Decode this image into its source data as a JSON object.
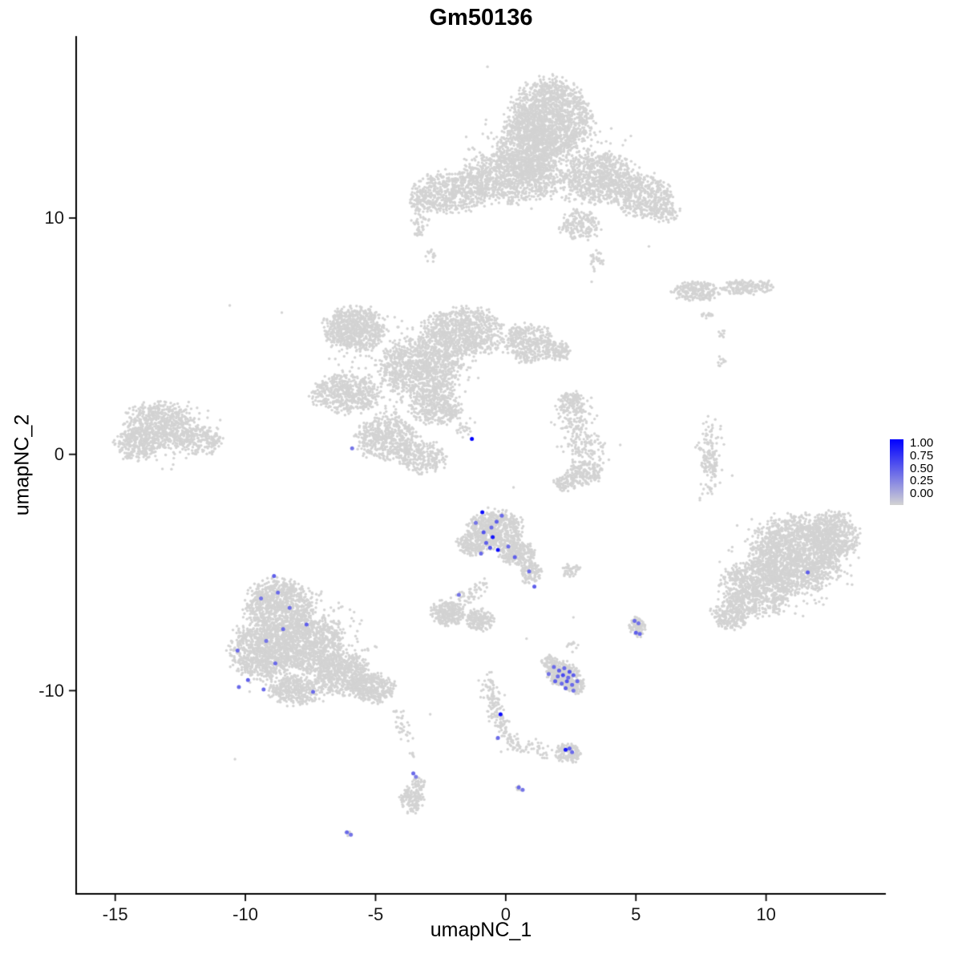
{
  "chart_data": {
    "type": "scatter",
    "title": "Gm50136",
    "xlabel": "umapNC_1",
    "ylabel": "umapNC_2",
    "xlim": [
      -16.5,
      14.6
    ],
    "ylim": [
      -18.6,
      17.7
    ],
    "x_ticks": [
      -15,
      -10,
      -5,
      0,
      5,
      10
    ],
    "y_ticks": [
      10,
      0,
      -10
    ],
    "grid": false,
    "legend_position": "right",
    "legend_labels": [
      "1.00",
      "0.75",
      "0.50",
      "0.25",
      "0.00"
    ],
    "point_color_low": "#D3D3D3",
    "point_color_high": "#0000FF",
    "n_cells_approx": 23000,
    "expression_range": [
      0,
      1
    ],
    "background_clusters": [
      {
        "x": 1.7,
        "y": 14.2,
        "rx": 1.55,
        "ry": 1.65,
        "n": 1500
      },
      {
        "x": 0.9,
        "y": 12.9,
        "rx": 1.3,
        "ry": 1.2,
        "n": 650
      },
      {
        "x": 0.2,
        "y": 11.7,
        "rx": 1.9,
        "ry": 1.1,
        "n": 900
      },
      {
        "x": -2.1,
        "y": 11.1,
        "rx": 1.4,
        "ry": 0.85,
        "n": 520
      },
      {
        "x": -3.2,
        "y": 10.7,
        "rx": 0.6,
        "ry": 0.5,
        "n": 90
      },
      {
        "x": 3.6,
        "y": 11.7,
        "rx": 1.5,
        "ry": 1.05,
        "n": 750
      },
      {
        "x": 5.3,
        "y": 10.9,
        "rx": 1.05,
        "ry": 0.95,
        "n": 420
      },
      {
        "x": 6.1,
        "y": 10.3,
        "rx": 0.55,
        "ry": 0.5,
        "n": 90
      },
      {
        "x": 2.8,
        "y": 9.7,
        "rx": 0.8,
        "ry": 0.65,
        "n": 170
      },
      {
        "x": 1.5,
        "y": 12.6,
        "rx": 3.1,
        "ry": 2.3,
        "n": 260
      },
      {
        "x": -3.3,
        "y": 9.8,
        "rx": 0.35,
        "ry": 0.6,
        "n": 40
      },
      {
        "x": -2.9,
        "y": 8.4,
        "rx": 0.25,
        "ry": 0.3,
        "n": 14
      },
      {
        "x": 3.5,
        "y": 8.2,
        "rx": 0.3,
        "ry": 0.45,
        "n": 30
      },
      {
        "x": -5.8,
        "y": 5.3,
        "rx": 1.15,
        "ry": 0.95,
        "n": 700
      },
      {
        "x": -1.6,
        "y": 5.2,
        "rx": 1.5,
        "ry": 1.0,
        "n": 800
      },
      {
        "x": 0.9,
        "y": 4.7,
        "rx": 1.0,
        "ry": 0.8,
        "n": 380
      },
      {
        "x": 2.0,
        "y": 4.4,
        "rx": 0.5,
        "ry": 0.45,
        "n": 110
      },
      {
        "x": -3.3,
        "y": 3.7,
        "rx": 1.6,
        "ry": 1.25,
        "n": 950
      },
      {
        "x": -6.1,
        "y": 2.6,
        "rx": 1.3,
        "ry": 0.85,
        "n": 520
      },
      {
        "x": -2.7,
        "y": 2.0,
        "rx": 0.95,
        "ry": 0.75,
        "n": 320
      },
      {
        "x": -3.6,
        "y": 3.8,
        "rx": 2.9,
        "ry": 2.1,
        "n": 190
      },
      {
        "x": -13.3,
        "y": 1.2,
        "rx": 1.35,
        "ry": 1.0,
        "n": 620
      },
      {
        "x": -11.7,
        "y": 0.6,
        "rx": 0.85,
        "ry": 0.6,
        "n": 210
      },
      {
        "x": -14.2,
        "y": 0.4,
        "rx": 0.8,
        "ry": 0.65,
        "n": 210
      },
      {
        "x": -13.0,
        "y": 0.9,
        "rx": 1.9,
        "ry": 1.5,
        "n": 110
      },
      {
        "x": -4.6,
        "y": 0.7,
        "rx": 1.25,
        "ry": 0.95,
        "n": 520
      },
      {
        "x": -3.2,
        "y": -0.1,
        "rx": 0.95,
        "ry": 0.7,
        "n": 240
      },
      {
        "x": 2.5,
        "y": 2.2,
        "rx": 0.55,
        "ry": 0.45,
        "n": 110
      },
      {
        "x": 3.0,
        "y": -0.8,
        "rx": 0.7,
        "ry": 0.5,
        "n": 160
      },
      {
        "x": 2.3,
        "y": -1.2,
        "rx": 0.45,
        "ry": 0.35,
        "n": 80
      },
      {
        "x": 7.85,
        "y": -0.3,
        "rx": 0.3,
        "ry": 0.5,
        "n": 60
      },
      {
        "x": 8.3,
        "y": 3.9,
        "rx": 0.2,
        "ry": 0.25,
        "n": 10
      },
      {
        "x": 8.3,
        "y": 5.1,
        "rx": 0.2,
        "ry": 0.2,
        "n": 8
      },
      {
        "x": 7.3,
        "y": 6.9,
        "rx": 0.95,
        "ry": 0.42,
        "n": 210
      },
      {
        "x": 9.0,
        "y": 7.05,
        "rx": 0.8,
        "ry": 0.32,
        "n": 130
      },
      {
        "x": 9.95,
        "y": 7.1,
        "rx": 0.35,
        "ry": 0.25,
        "n": 45
      },
      {
        "x": 7.7,
        "y": 5.9,
        "rx": 0.3,
        "ry": 0.2,
        "n": 14
      },
      {
        "x": 11.2,
        "y": -4.2,
        "rx": 1.75,
        "ry": 1.55,
        "n": 1700
      },
      {
        "x": 9.6,
        "y": -5.7,
        "rx": 1.35,
        "ry": 1.15,
        "n": 750
      },
      {
        "x": 12.6,
        "y": -3.4,
        "rx": 0.95,
        "ry": 0.95,
        "n": 420
      },
      {
        "x": 8.6,
        "y": -6.8,
        "rx": 0.75,
        "ry": 0.6,
        "n": 210
      },
      {
        "x": 10.8,
        "y": -4.7,
        "rx": 2.5,
        "ry": 2.1,
        "n": 230
      },
      {
        "x": -0.4,
        "y": -3.2,
        "rx": 1.05,
        "ry": 0.85,
        "n": 620
      },
      {
        "x": 0.5,
        "y": -4.2,
        "rx": 0.7,
        "ry": 0.5,
        "n": 240
      },
      {
        "x": 1.0,
        "y": -5.0,
        "rx": 0.45,
        "ry": 0.45,
        "n": 110
      },
      {
        "x": -1.3,
        "y": -3.8,
        "rx": 0.55,
        "ry": 0.5,
        "n": 150
      },
      {
        "x": 2.5,
        "y": -4.9,
        "rx": 0.35,
        "ry": 0.3,
        "n": 45
      },
      {
        "x": -2.2,
        "y": -6.7,
        "rx": 0.65,
        "ry": 0.55,
        "n": 260
      },
      {
        "x": -1.0,
        "y": -7.0,
        "rx": 0.55,
        "ry": 0.45,
        "n": 160
      },
      {
        "x": -8.7,
        "y": -6.4,
        "rx": 1.35,
        "ry": 1.1,
        "n": 850
      },
      {
        "x": -9.3,
        "y": -8.3,
        "rx": 1.25,
        "ry": 1.2,
        "n": 850
      },
      {
        "x": -7.5,
        "y": -8.0,
        "rx": 1.25,
        "ry": 1.2,
        "n": 850
      },
      {
        "x": -6.3,
        "y": -9.3,
        "rx": 1.1,
        "ry": 0.9,
        "n": 600
      },
      {
        "x": -5.1,
        "y": -9.9,
        "rx": 0.8,
        "ry": 0.6,
        "n": 330
      },
      {
        "x": -8.1,
        "y": -10.0,
        "rx": 0.95,
        "ry": 0.6,
        "n": 330
      },
      {
        "x": -7.8,
        "y": -8.2,
        "rx": 2.7,
        "ry": 2.3,
        "n": 300
      },
      {
        "x": -3.6,
        "y": -12.7,
        "rx": 0.12,
        "ry": 0.15,
        "n": 6
      },
      {
        "x": 2.4,
        "y": -12.65,
        "rx": 0.5,
        "ry": 0.4,
        "n": 150
      },
      {
        "x": 2.2,
        "y": -9.3,
        "rx": 0.6,
        "ry": 0.5,
        "n": 280
      },
      {
        "x": 2.7,
        "y": -9.8,
        "rx": 0.4,
        "ry": 0.35,
        "n": 110
      },
      {
        "x": 1.7,
        "y": -8.8,
        "rx": 0.3,
        "ry": 0.3,
        "n": 60
      },
      {
        "x": 2.6,
        "y": -8.1,
        "rx": 0.3,
        "ry": 0.25,
        "n": 12
      },
      {
        "x": 5.05,
        "y": -7.3,
        "rx": 0.32,
        "ry": 0.42,
        "n": 95
      },
      {
        "x": 0.55,
        "y": -14.15,
        "rx": 0.18,
        "ry": 0.15,
        "n": 6
      },
      {
        "x": -3.6,
        "y": -14.6,
        "rx": 0.45,
        "ry": 0.6,
        "n": 130
      },
      {
        "x": -3.35,
        "y": -13.9,
        "rx": 0.25,
        "ry": 0.3,
        "n": 40
      },
      {
        "x": -6.05,
        "y": -16.05,
        "rx": 0.15,
        "ry": 0.12,
        "n": 5
      }
    ],
    "connector_trails": [
      {
        "x1": -2.5,
        "y1": 2.4,
        "x2": -1.35,
        "y2": 0.75,
        "n": 55,
        "j": 0.16
      },
      {
        "x1": 2.6,
        "y1": 1.9,
        "x2": 3.2,
        "y2": -0.3,
        "n": 220,
        "j": 0.38
      },
      {
        "x1": 7.8,
        "y1": 1.4,
        "x2": 7.9,
        "y2": -1.8,
        "n": 110,
        "j": 0.22
      },
      {
        "x1": -1.7,
        "y1": -6.2,
        "x2": -0.8,
        "y2": -5.4,
        "n": 50,
        "j": 0.18
      },
      {
        "x1": -4.2,
        "y1": -10.7,
        "x2": -3.8,
        "y2": -12.2,
        "n": 35,
        "j": 0.14
      },
      {
        "x1": -0.75,
        "y1": -9.5,
        "x2": -0.25,
        "y2": -11.3,
        "n": 110,
        "j": 0.17
      },
      {
        "x1": -0.25,
        "y1": -11.3,
        "x2": 0.3,
        "y2": -12.3,
        "n": 60,
        "j": 0.15
      },
      {
        "x1": 0.3,
        "y1": -12.3,
        "x2": 2.0,
        "y2": -12.7,
        "n": 55,
        "j": 0.14
      }
    ],
    "singleton_points": [
      [
        -10.6,
        6.3
      ],
      [
        -8.6,
        6.0
      ],
      [
        4.4,
        0.4
      ],
      [
        0.3,
        -1.4
      ],
      [
        8.7,
        -0.9
      ],
      [
        -0.7,
        16.4
      ],
      [
        3.3,
        7.3
      ],
      [
        5.5,
        8.8
      ],
      [
        2.6,
        -6.9
      ],
      [
        0.8,
        -7.8
      ],
      [
        -2.9,
        -11.0
      ],
      [
        -10.4,
        -12.9
      ]
    ],
    "expressing_cells": [
      [
        -1.3,
        0.65,
        1.0
      ],
      [
        -5.9,
        0.25,
        0.45
      ],
      [
        -0.9,
        -2.45,
        0.95
      ],
      [
        -1.15,
        -2.9,
        0.45
      ],
      [
        -0.15,
        -2.6,
        0.5
      ],
      [
        -0.35,
        -2.85,
        0.55
      ],
      [
        -0.55,
        -3.1,
        0.5
      ],
      [
        -0.85,
        -3.3,
        0.6
      ],
      [
        -0.5,
        -3.5,
        0.9
      ],
      [
        -0.75,
        -3.75,
        0.55
      ],
      [
        -0.6,
        -3.95,
        0.6
      ],
      [
        -0.3,
        -4.05,
        0.95
      ],
      [
        -0.95,
        -4.2,
        0.5
      ],
      [
        0.1,
        -3.9,
        0.5
      ],
      [
        0.35,
        -4.35,
        0.55
      ],
      [
        0.9,
        -4.95,
        0.5
      ],
      [
        1.1,
        -5.6,
        0.55
      ],
      [
        -1.8,
        -5.95,
        0.45
      ],
      [
        -8.9,
        -5.15,
        0.55
      ],
      [
        -8.75,
        -5.85,
        0.5
      ],
      [
        -9.4,
        -6.1,
        0.45
      ],
      [
        -8.3,
        -6.5,
        0.5
      ],
      [
        -7.65,
        -7.2,
        0.55
      ],
      [
        -8.55,
        -7.4,
        0.5
      ],
      [
        -9.2,
        -7.9,
        0.45
      ],
      [
        -10.3,
        -8.3,
        0.5
      ],
      [
        -8.85,
        -8.85,
        0.5
      ],
      [
        -9.9,
        -9.55,
        0.55
      ],
      [
        -10.25,
        -9.85,
        0.5
      ],
      [
        -9.3,
        -9.95,
        0.5
      ],
      [
        -7.4,
        -10.05,
        0.5
      ],
      [
        1.65,
        -9.3,
        0.45
      ],
      [
        1.85,
        -9.0,
        0.5
      ],
      [
        2.05,
        -9.15,
        0.55
      ],
      [
        2.25,
        -9.05,
        0.5
      ],
      [
        2.45,
        -9.2,
        0.6
      ],
      [
        2.0,
        -9.4,
        0.5
      ],
      [
        2.2,
        -9.35,
        0.65
      ],
      [
        2.4,
        -9.45,
        0.5
      ],
      [
        2.6,
        -9.35,
        0.55
      ],
      [
        1.9,
        -9.6,
        0.55
      ],
      [
        2.15,
        -9.7,
        0.5
      ],
      [
        2.35,
        -9.6,
        0.6
      ],
      [
        2.55,
        -9.75,
        0.5
      ],
      [
        2.75,
        -9.6,
        0.5
      ],
      [
        2.3,
        -9.9,
        0.55
      ],
      [
        2.6,
        -10.0,
        0.45
      ],
      [
        4.95,
        -7.05,
        0.5
      ],
      [
        5.1,
        -7.15,
        0.45
      ],
      [
        5.0,
        -7.55,
        0.55
      ],
      [
        5.15,
        -7.6,
        0.5
      ],
      [
        -0.2,
        -11.0,
        0.95
      ],
      [
        -0.3,
        -12.0,
        0.5
      ],
      [
        2.3,
        -12.5,
        0.9
      ],
      [
        2.45,
        -12.45,
        0.55
      ],
      [
        2.55,
        -12.6,
        0.5
      ],
      [
        0.5,
        -14.1,
        0.5
      ],
      [
        0.65,
        -14.2,
        0.45
      ],
      [
        -3.55,
        -13.5,
        0.5
      ],
      [
        -3.45,
        -13.65,
        0.4
      ],
      [
        -6.1,
        -16.0,
        0.5
      ],
      [
        -5.95,
        -16.1,
        0.45
      ],
      [
        11.6,
        -5.0,
        0.55
      ]
    ]
  }
}
